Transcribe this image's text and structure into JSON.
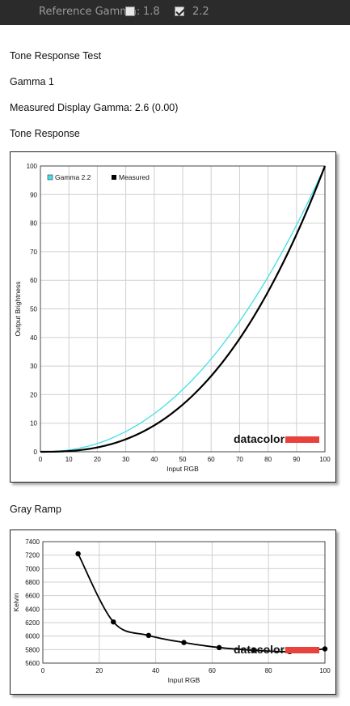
{
  "toolbar": {
    "reference_label": "Reference Gamma:",
    "options": [
      {
        "label": "1.8",
        "checked": false
      },
      {
        "label": "2.2",
        "checked": true
      }
    ]
  },
  "headings": {
    "test_title": "Tone Response Test",
    "gamma_label": "Gamma 1",
    "measured": "Measured Display Gamma: 2.6 (0.00)",
    "tone_response": "Tone Response",
    "gray_ramp": "Gray Ramp"
  },
  "brand": {
    "logo_text": "datacolor",
    "accent": "#e8423c"
  },
  "chart_data": [
    {
      "type": "line",
      "title": "",
      "xlabel": "Input RGB",
      "ylabel": "Output Brightness",
      "xlim": [
        0,
        100
      ],
      "ylim": [
        0,
        100
      ],
      "xticks": [
        0,
        10,
        20,
        30,
        40,
        50,
        60,
        70,
        80,
        90,
        100
      ],
      "yticks": [
        0,
        10,
        20,
        30,
        40,
        50,
        60,
        70,
        80,
        90,
        100
      ],
      "grid": true,
      "legend": "top-left",
      "series": [
        {
          "name": "Gamma 2.2",
          "color": "#40e0e8",
          "gamma": 2.2
        },
        {
          "name": "Measured",
          "color": "#000000",
          "gamma": 2.6
        }
      ]
    },
    {
      "type": "line",
      "title": "",
      "xlabel": "Input RGB",
      "ylabel": "Kelvin",
      "xlim": [
        0,
        100
      ],
      "ylim": [
        5600,
        7400
      ],
      "xticks": [
        0,
        20,
        40,
        60,
        80,
        100
      ],
      "yticks": [
        5600,
        5800,
        6000,
        6200,
        6400,
        6600,
        6800,
        7000,
        7200,
        7400
      ],
      "grid": true,
      "series": [
        {
          "x": [
            12.5,
            25,
            37.5,
            50,
            62.5,
            75,
            87.5,
            100
          ],
          "y": [
            7220,
            6210,
            6010,
            5905,
            5830,
            5790,
            5770,
            5810
          ]
        }
      ]
    }
  ]
}
